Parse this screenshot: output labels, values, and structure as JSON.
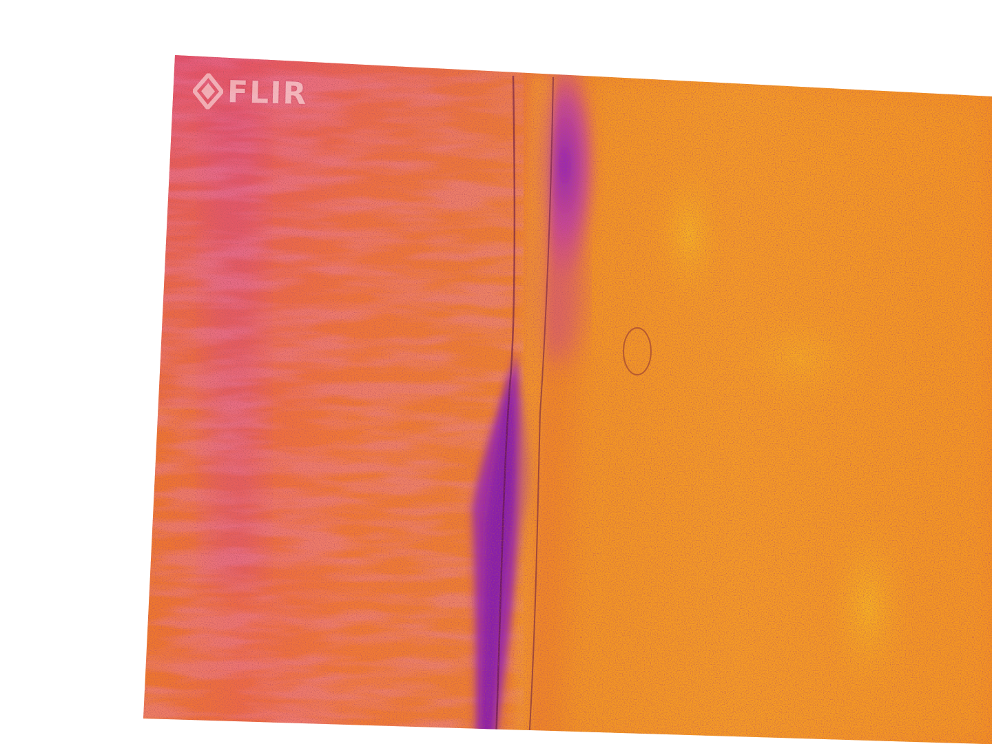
{
  "photo": {
    "kind": "thermal-infrared-image",
    "palette": [
      "#2a0034",
      "#7a1ea8",
      "#c42fb0",
      "#e04a7a",
      "#f26a3a",
      "#f48a1e",
      "#f5a418",
      "#f8c21a"
    ],
    "background_color": "#ffffff"
  },
  "logo": {
    "text": "FLIR",
    "icon": "flir-diamond-icon"
  }
}
